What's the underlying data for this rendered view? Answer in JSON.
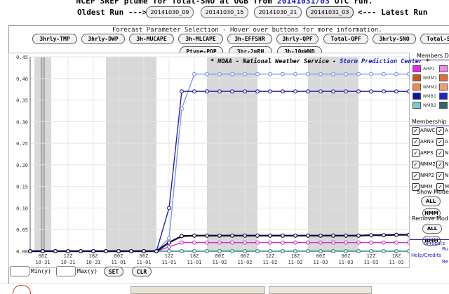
{
  "header": {
    "title_prefix": "NCEP SREF plume for Total-SNO at OGB from",
    "run_id": "20141031/03",
    "title_suffix": "UTC run.",
    "oldest_label": "Oldest Run --->",
    "latest_label": "<--- Latest Run",
    "runs": [
      "20141030_09",
      "20141030_15",
      "20141030_21",
      "20141031_03"
    ]
  },
  "params": {
    "caption": "Forecast Parameter Selection - Hover over buttons for more information.",
    "row1": [
      "3hrly-TMP",
      "3hrly-DWP",
      "3h-MUCAPE",
      "3h-MLCAPE",
      "3h-EFFSHR",
      "3hrly-QPF",
      "Total-QPF",
      "3hrly-SNO",
      "Total-S"
    ],
    "row2": [
      "Ptype-POP",
      "3hr-2mRH",
      "3h-10mWND"
    ]
  },
  "legend_note": {
    "prefix": "* NOAA - National Weather Service -",
    "link": "Storm Prediction Center",
    "suffix": "*"
  },
  "chart_data": {
    "type": "line",
    "title": "",
    "xlabel": "",
    "ylabel": "",
    "ylim": [
      0,
      0.45
    ],
    "yticks": [
      "0.00",
      "0.05",
      "0.10",
      "0.15",
      "0.20",
      "0.25",
      "0.30",
      "0.35",
      "0.40",
      "0.45"
    ],
    "x_labels": [
      [
        "06Z",
        "10-31"
      ],
      [
        "12Z",
        "10-31"
      ],
      [
        "18Z",
        "10-31"
      ],
      [
        "00Z",
        "11-01"
      ],
      [
        "06Z",
        "11-01"
      ],
      [
        "12Z",
        "11-01"
      ],
      [
        "18Z",
        "11-01"
      ],
      [
        "00Z",
        "11-02"
      ],
      [
        "06Z",
        "11-02"
      ],
      [
        "12Z",
        "11-02"
      ],
      [
        "18Z",
        "11-02"
      ],
      [
        "00Z",
        "11-03"
      ],
      [
        "06Z",
        "11-03"
      ],
      [
        "12Z",
        "11-03"
      ],
      [
        "18Z",
        "11-03"
      ]
    ],
    "x_hours": [
      0,
      6,
      12,
      18,
      24,
      30,
      36,
      42,
      48,
      54,
      60,
      66,
      72,
      78,
      84
    ],
    "x_range": [
      -3,
      87
    ],
    "night_bands": [
      [
        -2,
        2
      ],
      [
        15,
        27
      ],
      [
        39,
        51
      ],
      [
        63,
        75
      ]
    ],
    "series": [
      {
        "color": "#7799ee",
        "x": [
          -3,
          0,
          3,
          6,
          9,
          12,
          15,
          18,
          21,
          24,
          27,
          30,
          33,
          36,
          39,
          42,
          45,
          48,
          51,
          54,
          57,
          60,
          63,
          66,
          69,
          72,
          75,
          78,
          81,
          84,
          87
        ],
        "values": [
          0,
          0,
          0,
          0,
          0,
          0,
          0,
          0,
          0,
          0,
          0,
          0.03,
          0.33,
          0.41,
          0.41,
          0.41,
          0.41,
          0.41,
          0.41,
          0.41,
          0.41,
          0.41,
          0.41,
          0.41,
          0.41,
          0.41,
          0.41,
          0.41,
          0.41,
          0.41,
          0.41
        ]
      },
      {
        "color": "#2222aa",
        "x": [
          -3,
          0,
          3,
          6,
          9,
          12,
          15,
          18,
          21,
          24,
          27,
          30,
          33,
          36,
          39,
          42,
          45,
          48,
          51,
          54,
          57,
          60,
          63,
          66,
          69,
          72,
          75,
          78,
          81,
          84,
          87
        ],
        "values": [
          0,
          0,
          0,
          0,
          0,
          0,
          0,
          0,
          0,
          0,
          0,
          0.1,
          0.37,
          0.37,
          0.37,
          0.37,
          0.37,
          0.37,
          0.37,
          0.37,
          0.37,
          0.37,
          0.37,
          0.37,
          0.37,
          0.37,
          0.37,
          0.37,
          0.37,
          0.37,
          0.37
        ]
      },
      {
        "color": "#cc33cc",
        "x": [
          -3,
          0,
          3,
          6,
          9,
          12,
          15,
          18,
          21,
          24,
          27,
          30,
          33,
          36,
          39,
          42,
          45,
          48,
          51,
          54,
          57,
          60,
          63,
          66,
          69,
          72,
          75,
          78,
          81,
          84,
          87
        ],
        "values": [
          0,
          0,
          0,
          0,
          0,
          0,
          0,
          0,
          0,
          0,
          0,
          0.01,
          0.02,
          0.02,
          0.02,
          0.02,
          0.02,
          0.02,
          0.02,
          0.02,
          0.02,
          0.02,
          0.02,
          0.02,
          0.02,
          0.02,
          0.02,
          0.02,
          0.02,
          0.02,
          0.02
        ]
      },
      {
        "color": "#2a8a8a",
        "x": [
          -3,
          0,
          3,
          6,
          9,
          12,
          15,
          18,
          21,
          24,
          27,
          30,
          33,
          36,
          39,
          42,
          45,
          48,
          51,
          54,
          57,
          60,
          63,
          66,
          69,
          72,
          75,
          78,
          81,
          84,
          87
        ],
        "values": [
          0,
          0,
          0,
          0,
          0,
          0,
          0,
          0,
          0,
          0,
          0,
          0,
          0,
          0,
          0,
          0,
          0,
          0,
          0,
          0,
          0,
          0,
          0,
          0,
          0,
          0,
          0,
          0,
          0,
          0,
          0
        ]
      },
      {
        "color": "#0a0a3a",
        "x": [
          -3,
          0,
          3,
          6,
          9,
          12,
          15,
          18,
          21,
          24,
          27,
          30,
          33,
          36,
          39,
          42,
          45,
          48,
          51,
          54,
          57,
          60,
          63,
          66,
          69,
          72,
          75,
          78,
          81,
          84,
          87
        ],
        "values": [
          0,
          0,
          0,
          0,
          0,
          0,
          0,
          0,
          0,
          0,
          0,
          0.02,
          0.035,
          0.036,
          0.036,
          0.036,
          0.036,
          0.036,
          0.036,
          0.036,
          0.036,
          0.036,
          0.036,
          0.036,
          0.036,
          0.036,
          0.036,
          0.037,
          0.037,
          0.038,
          0.038
        ]
      }
    ]
  },
  "right_panel": {
    "members_heading": "Members D",
    "swatches": [
      {
        "label": "ARP1",
        "color": "#ee22ee"
      },
      {
        "label": "NMM1",
        "color": "#cc5522"
      },
      {
        "label": "NMM2",
        "color": "#ee8855"
      },
      {
        "label": "NMB1",
        "color": "#1111aa"
      },
      {
        "label": "NMB2",
        "color": "#77cccc"
      }
    ],
    "swatch_pair_colors": [
      "#ee88ee",
      "#ee6633",
      "#f0a070",
      "#2222cc",
      "#336666"
    ],
    "membership_heading": "Membership",
    "checkboxes": [
      "ARWC",
      "ARN3",
      "ARP3",
      "NMM2",
      "NMP2",
      "NMM"
    ],
    "checkbox_second_labels": [
      "A",
      "A",
      "N",
      "N",
      "N",
      "M"
    ],
    "show_heading": "Show Mode",
    "remove_heading": "Remove Mod",
    "btn_all": "ALL",
    "btn_nmm": "NMM",
    "links": [
      "dProbs(s",
      "Ru",
      "Help/Credits",
      "Re"
    ]
  },
  "minmax": {
    "min_label": "Min(y)",
    "max_label": "Max(y)",
    "set": "SET",
    "clr": "CLR"
  }
}
